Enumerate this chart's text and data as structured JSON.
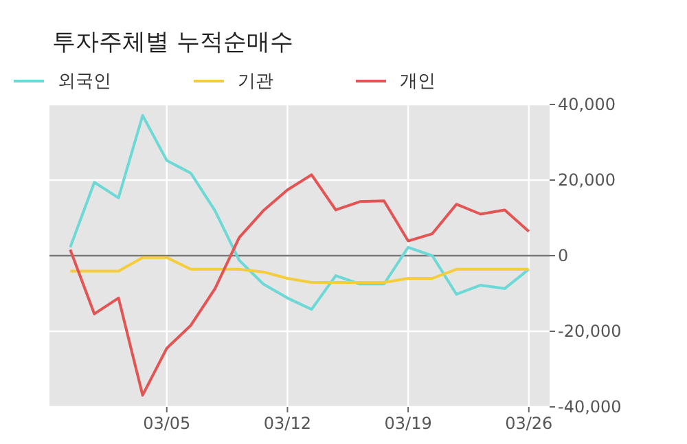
{
  "chart_data": {
    "type": "line",
    "title": "투자주체별 누적순매수",
    "categories": [
      null,
      null,
      null,
      null,
      "03/05",
      null,
      null,
      null,
      null,
      "03/12",
      null,
      null,
      null,
      null,
      "03/19",
      null,
      null,
      null,
      null,
      "03/26"
    ],
    "series": [
      {
        "name": "외국인",
        "color": "#6dd9d6",
        "values": [
          2200,
          19400,
          15300,
          37100,
          25200,
          21800,
          11900,
          -1200,
          -7500,
          -11200,
          -14200,
          -5300,
          -7500,
          -7500,
          2200,
          0,
          -10200,
          -7800,
          -8700,
          -3600
        ]
      },
      {
        "name": "기관",
        "color": "#f5cd3a",
        "values": [
          -4100,
          -4100,
          -4100,
          -500,
          -500,
          -3600,
          -3600,
          -3600,
          -4300,
          -6000,
          -7100,
          -7100,
          -7100,
          -7100,
          -6000,
          -6000,
          -3600,
          -3600,
          -3600,
          -3600
        ]
      },
      {
        "name": "개인",
        "color": "#e35454",
        "values": [
          1600,
          -15400,
          -11200,
          -36900,
          -24500,
          -18400,
          -8700,
          4800,
          11900,
          17400,
          21400,
          12100,
          14300,
          14500,
          3900,
          5800,
          13600,
          11000,
          12100,
          6400
        ]
      }
    ],
    "ylim": [
      -40000,
      40000
    ],
    "yticks": [
      {
        "value": 40000,
        "label": "40,000"
      },
      {
        "value": 20000,
        "label": "20,000"
      },
      0,
      {
        "value": -20000,
        "label": "-20,000"
      },
      {
        "value": -40000,
        "label": "-40,000"
      }
    ],
    "ref_lines": [
      {
        "axis": "y",
        "value": 0,
        "color": "#777777"
      }
    ],
    "grid": true,
    "legend": "top left",
    "line_style": "solid",
    "marker": "none"
  }
}
